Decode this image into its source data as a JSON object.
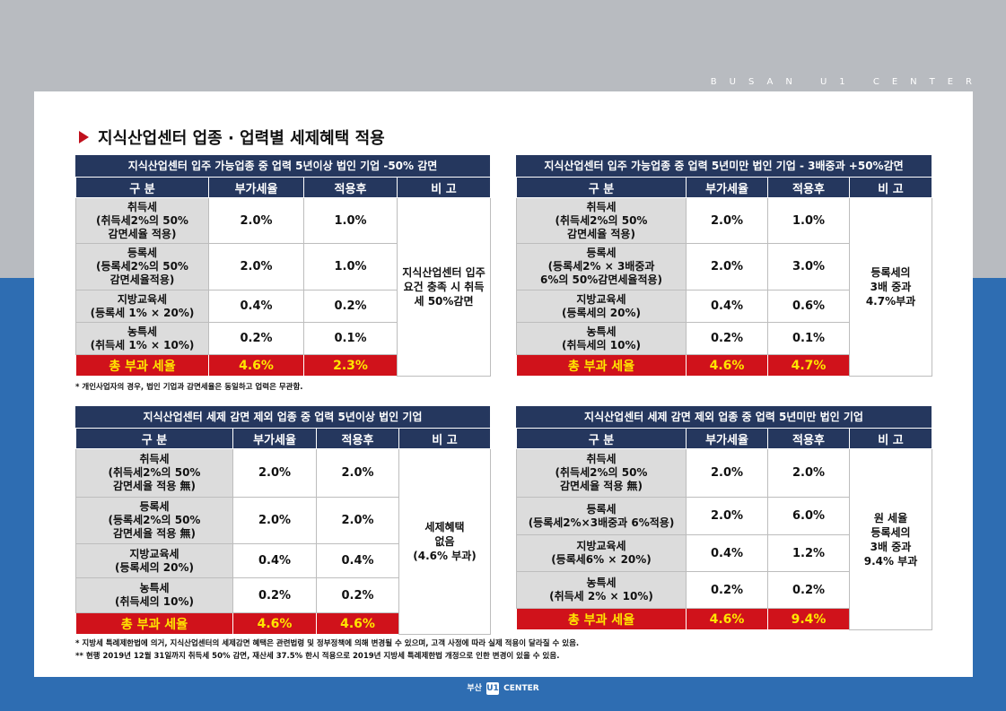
{
  "brand_top": "BUSAN U1 CENTER",
  "title": "지식산업센터 업종 · 업력별 세제혜택 적용",
  "headers": [
    "구 분",
    "부가세율",
    "적용후",
    "비 고"
  ],
  "total_label": "총 부과 세율",
  "tables": [
    {
      "title": "지식산업센터 입주 가능업종 중 업력 5년이상 법인 기업 -50% 감면",
      "rows": [
        {
          "label": "취득세\n(취득세2%의 50%\n감면세율 적용)",
          "rate": "2.0%",
          "after": "1.0%"
        },
        {
          "label": "등록세\n(등록세2%의 50%\n감면세율적용)",
          "rate": "2.0%",
          "after": "1.0%"
        },
        {
          "label": "지방교육세\n(등록세 1% × 20%)",
          "rate": "0.4%",
          "after": "0.2%"
        },
        {
          "label": "농특세\n(취득세 1% × 10%)",
          "rate": "0.2%",
          "after": "0.1%"
        }
      ],
      "note": "지식산업센터 입주\n요건 충족 시 취득\n세 50%감면",
      "total_rate": "4.6%",
      "total_after": "2.3%"
    },
    {
      "title": "지식산업센터 입주 가능업종 중 업력 5년미만 법인 기업 - 3배중과 +50%감면",
      "rows": [
        {
          "label": "취득세\n(취득세2%의 50%\n감면세율 적용)",
          "rate": "2.0%",
          "after": "1.0%"
        },
        {
          "label": "등록세\n(등록세2% × 3배중과\n6%의 50%감면세율적용)",
          "rate": "2.0%",
          "after": "3.0%"
        },
        {
          "label": "지방교육세\n(등록세의 20%)",
          "rate": "0.4%",
          "after": "0.6%"
        },
        {
          "label": "농특세\n(취득세의 10%)",
          "rate": "0.2%",
          "after": "0.1%"
        }
      ],
      "note": "등록세의\n3배 중과\n4.7%부과",
      "total_rate": "4.6%",
      "total_after": "4.7%"
    },
    {
      "title": "지식산업센터 세제 감면 제외 업종 중 업력 5년이상 법인 기업",
      "rows": [
        {
          "label": "취득세\n(취득세2%의 50%\n감면세율 적용 無)",
          "rate": "2.0%",
          "after": "2.0%"
        },
        {
          "label": "등록세\n(등록세2%의 50%\n감면세율 적용 無)",
          "rate": "2.0%",
          "after": "2.0%"
        },
        {
          "label": "지방교육세\n(등록세의 20%)",
          "rate": "0.4%",
          "after": "0.4%"
        },
        {
          "label": "농특세\n(취득세의 10%)",
          "rate": "0.2%",
          "after": "0.2%"
        }
      ],
      "note": "세제혜택\n없음\n(4.6% 부과)",
      "total_rate": "4.6%",
      "total_after": "4.6%"
    },
    {
      "title": "지식산업센터 세제 감면 제외 업종 중 업력 5년미만 법인 기업",
      "rows": [
        {
          "label": "취득세\n(취득세2%의 50%\n감면세율 적용 無)",
          "rate": "2.0%",
          "after": "2.0%"
        },
        {
          "label": "등록세\n(등록세2%×3배중과 6%적용)",
          "rate": "2.0%",
          "after": "6.0%"
        },
        {
          "label": "지방교육세\n(등록세6% × 20%)",
          "rate": "0.4%",
          "after": "1.2%"
        },
        {
          "label": "농특세\n(취득세 2% × 10%)",
          "rate": "0.2%",
          "after": "0.2%"
        }
      ],
      "note": "원 세율\n등록세의\n3배 중과\n9.4% 부과",
      "total_rate": "4.6%",
      "total_after": "9.4%"
    }
  ],
  "footnote_1": "* 개인사업자의 경우, 법인 기업과 감면세율은 동일하고 업력은 무관함.",
  "footnote_2": "* 지방세 특례제한법에 의거, 지식산업센터의 세제감면 혜택은 관련법령 및 정부정책에 의해 변경될 수 있으며, 고객 사정에 따라 실제 적용이 달라질 수 있음.",
  "footnote_3": "** 현행 2019년 12월 31일까지 취득세 50% 감면, 재산세 37.5% 한시 적용으로 2019년 지방세 특례제한법 개정으로 인한 변경이 있을 수 있음.",
  "footer_prefix": "부산",
  "footer_logo_mark": "U1",
  "footer_suffix": "CENTER"
}
